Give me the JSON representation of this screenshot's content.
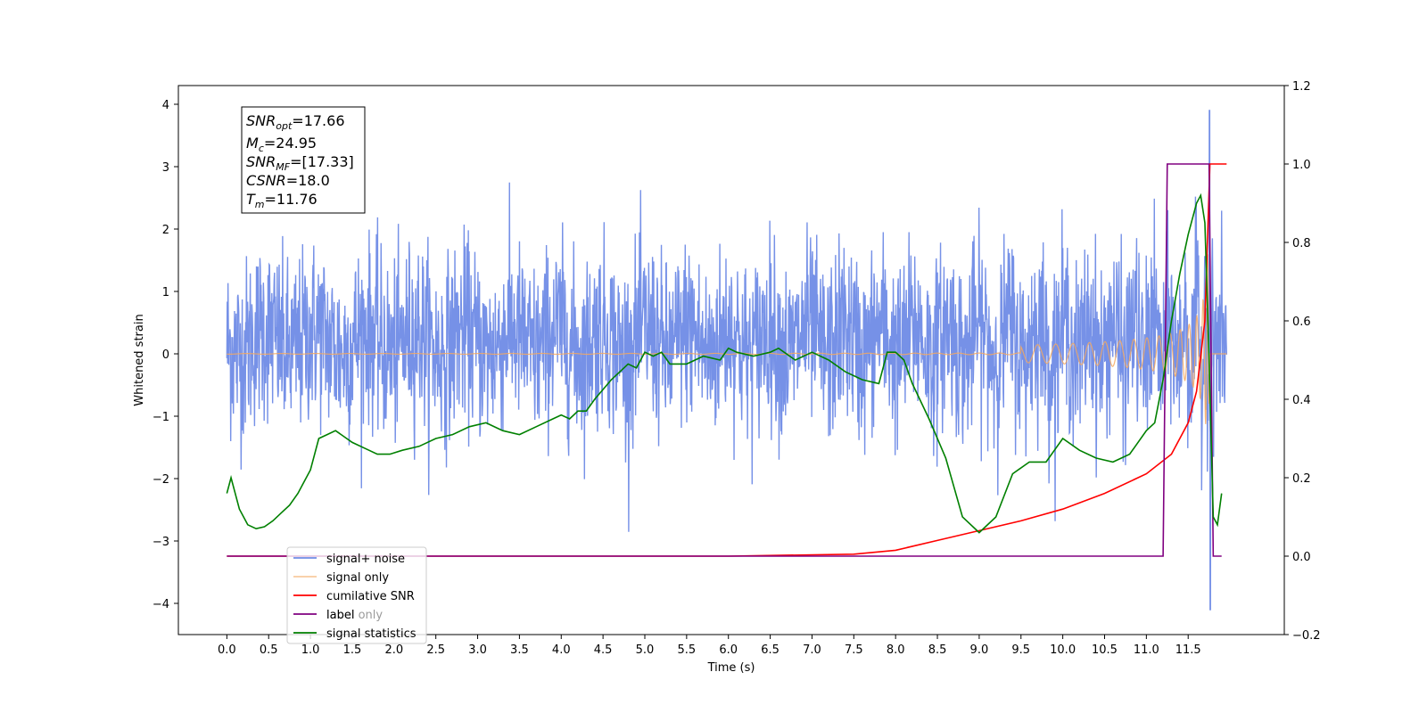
{
  "chart_data": {
    "type": "line",
    "xlabel": "Time (s)",
    "ylabel": "Whitened strain",
    "xlim": [
      -0.58,
      12.65
    ],
    "ylim": [
      -4.5,
      4.3
    ],
    "y2lim": [
      -0.2,
      1.2
    ],
    "x_ticks": [
      "0.0",
      "0.5",
      "1.0",
      "1.5",
      "2.0",
      "2.5",
      "3.0",
      "3.5",
      "4.0",
      "4.5",
      "5.0",
      "5.5",
      "6.0",
      "6.5",
      "7.0",
      "7.5",
      "8.0",
      "8.5",
      "9.0",
      "9.5",
      "10.0",
      "10.5",
      "11.0",
      "11.5"
    ],
    "y_ticks": [
      "4",
      "3",
      "2",
      "1",
      "0",
      "−1",
      "−2",
      "−3",
      "−4"
    ],
    "y2_ticks": [
      "1.2",
      "1.0",
      "0.8",
      "0.6",
      "0.4",
      "0.2",
      "0.0",
      "−0.2"
    ],
    "annotation": {
      "lines": [
        {
          "pre": "SNR",
          "sub": "opt",
          "post": "=17.66"
        },
        {
          "pre": "M",
          "sub": "c",
          "post": "=24.95"
        },
        {
          "pre": "SNR",
          "sub": "MF",
          "post": "=[17.33]"
        },
        {
          "pre": "CSNR",
          "sub": "",
          "post": "=18.0"
        },
        {
          "pre": "T",
          "sub": "m",
          "post": "=11.76"
        }
      ]
    },
    "series": [
      {
        "name": "signal+ noise",
        "color": "#6f8be6",
        "axis": "left",
        "description": "whitened noise, amplitude about ±1.5 with peaks to about ±3, spike to 3.9 / -4.1 near t=11.76"
      },
      {
        "name": "signal only",
        "color": "#f5a860",
        "axis": "left",
        "description": "chirp growing from 0 to about ±2 at t=11.76"
      },
      {
        "name": "cumilative SNR",
        "color": "#ff0000",
        "axis": "right",
        "x": [
          0.0,
          6.0,
          7.5,
          8.0,
          8.5,
          9.0,
          9.5,
          10.0,
          10.5,
          11.0,
          11.3,
          11.5,
          11.6,
          11.7,
          11.76,
          11.8,
          11.96
        ],
        "values": [
          0.0,
          0.0,
          0.005,
          0.015,
          0.04,
          0.065,
          0.09,
          0.12,
          0.16,
          0.21,
          0.26,
          0.34,
          0.42,
          0.6,
          1.0,
          1.0,
          1.0
        ]
      },
      {
        "name": "label",
        "color": "#800080",
        "axis": "right",
        "x": [
          0.0,
          11.2,
          11.25,
          11.75,
          11.8,
          11.9
        ],
        "values": [
          0.0,
          0.0,
          1.0,
          1.0,
          0.0,
          0.0
        ]
      },
      {
        "name": "label only",
        "color": "#800080",
        "axis": "right",
        "description": "hidden behind label line"
      },
      {
        "name": "signal statistics",
        "color": "#008000",
        "axis": "right",
        "x": [
          0.0,
          0.05,
          0.15,
          0.25,
          0.35,
          0.45,
          0.55,
          0.65,
          0.75,
          0.85,
          0.9,
          1.0,
          1.1,
          1.2,
          1.3,
          1.5,
          1.7,
          1.8,
          1.95,
          2.1,
          2.3,
          2.5,
          2.7,
          2.9,
          3.1,
          3.3,
          3.5,
          3.7,
          3.9,
          4.0,
          4.1,
          4.2,
          4.3,
          4.4,
          4.6,
          4.8,
          4.9,
          5.0,
          5.1,
          5.2,
          5.3,
          5.5,
          5.7,
          5.9,
          6.0,
          6.1,
          6.3,
          6.5,
          6.6,
          6.8,
          7.0,
          7.2,
          7.4,
          7.6,
          7.8,
          7.9,
          8.0,
          8.1,
          8.2,
          8.4,
          8.6,
          8.8,
          9.0,
          9.2,
          9.4,
          9.6,
          9.8,
          10.0,
          10.2,
          10.4,
          10.6,
          10.8,
          11.0,
          11.1,
          11.2,
          11.3,
          11.4,
          11.5,
          11.6,
          11.65,
          11.7,
          11.75,
          11.8,
          11.85,
          11.9
        ],
        "values": [
          0.16,
          0.2,
          0.12,
          0.08,
          0.07,
          0.075,
          0.09,
          0.11,
          0.13,
          0.16,
          0.18,
          0.22,
          0.3,
          0.31,
          0.32,
          0.29,
          0.27,
          0.26,
          0.26,
          0.27,
          0.28,
          0.3,
          0.31,
          0.33,
          0.34,
          0.32,
          0.31,
          0.33,
          0.35,
          0.36,
          0.35,
          0.37,
          0.37,
          0.4,
          0.45,
          0.49,
          0.48,
          0.52,
          0.51,
          0.52,
          0.49,
          0.49,
          0.51,
          0.5,
          0.53,
          0.52,
          0.51,
          0.52,
          0.53,
          0.5,
          0.52,
          0.5,
          0.47,
          0.45,
          0.44,
          0.52,
          0.52,
          0.5,
          0.44,
          0.35,
          0.25,
          0.1,
          0.06,
          0.1,
          0.21,
          0.24,
          0.24,
          0.3,
          0.27,
          0.25,
          0.24,
          0.26,
          0.32,
          0.34,
          0.45,
          0.6,
          0.72,
          0.82,
          0.9,
          0.92,
          0.85,
          0.5,
          0.1,
          0.08,
          0.16
        ]
      }
    ],
    "legend_placement": "lower-left",
    "grid": false
  }
}
